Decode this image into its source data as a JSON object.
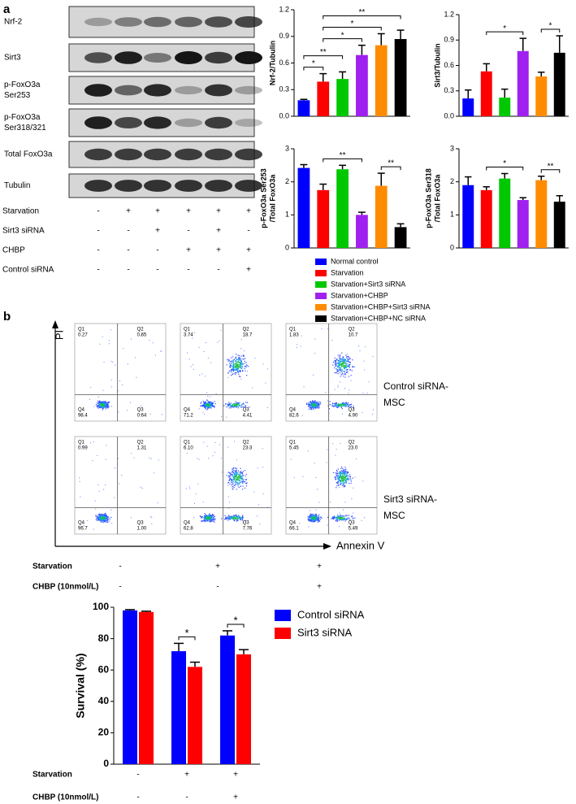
{
  "panels": [
    "a",
    "b"
  ],
  "blots": [
    [
      "Nrf-2"
    ],
    [
      "Sirt3"
    ],
    [
      "p-FoxO3a",
      "Ser253"
    ],
    [
      "p-FoxO3a",
      "Ser318/321"
    ],
    [
      "Total FoxO3a"
    ],
    [
      "Tubulin"
    ]
  ],
  "conditions_a": [
    {
      "label": "Starvation",
      "signs": [
        "-",
        "+",
        "+",
        "+",
        "+",
        "+"
      ]
    },
    {
      "label": "Sirt3 siRNA",
      "signs": [
        "-",
        "-",
        "+",
        "-",
        "+",
        "-"
      ]
    },
    {
      "label": "CHBP",
      "signs": [
        "-",
        "-",
        "-",
        "+",
        "+",
        "+"
      ]
    },
    {
      "label": "Control siRNA",
      "signs": [
        "-",
        "-",
        "-",
        "-",
        "-",
        "+"
      ]
    }
  ],
  "legend": [
    {
      "name": "Normal control",
      "color": "#0000ff"
    },
    {
      "name": "Starvation",
      "color": "#ff0000"
    },
    {
      "name": "Starvation+Sirt3 siRNA",
      "color": "#00c800"
    },
    {
      "name": "Starvation+CHBP",
      "color": "#a020f0"
    },
    {
      "name": "Starvation+CHBP+Sirt3 siRNA",
      "color": "#ff8c00"
    },
    {
      "name": "Starvation+CHBP+NC siRNA",
      "color": "#000000"
    }
  ],
  "flow": {
    "x_label": "Annexin V",
    "y_label": "PI",
    "quadrants": [
      "Q1",
      "Q2",
      "Q3",
      "Q4"
    ],
    "rows": [
      {
        "label": [
          "Control siRNA-",
          "MSC"
        ],
        "plots": [
          [
            "0.27",
            "0.65",
            "0.64",
            "98.4"
          ],
          [
            "3.74",
            "18.7",
            "4.41",
            "71.2"
          ],
          [
            "1.83",
            "10.7",
            "4.90",
            "82.6"
          ]
        ]
      },
      {
        "label": [
          "Sirt3 siRNA-",
          "MSC"
        ],
        "plots": [
          [
            "0.99",
            "1.31",
            "1.00",
            "96.7"
          ],
          [
            "6.10",
            "23.3",
            "7.76",
            "62.8"
          ],
          [
            "5.45",
            "23.0",
            "5.49",
            "66.1"
          ]
        ]
      }
    ]
  },
  "conditions_b": [
    {
      "label": "Starvation",
      "signs": [
        "-",
        "+",
        "+"
      ]
    },
    {
      "label": "CHBP (10nmol/L)",
      "signs": [
        "-",
        "-",
        "+"
      ]
    }
  ],
  "conditions_c": [
    {
      "label": "Starvation",
      "signs": [
        "-",
        "+",
        "+"
      ]
    },
    {
      "label": "CHBP (10nmol/L)",
      "signs": [
        "-",
        "-",
        "+"
      ]
    }
  ],
  "chart_data": [
    {
      "type": "bar",
      "ylabel": [
        "Nrf-2/Tubulin"
      ],
      "ylim": [
        0,
        1.2
      ],
      "yticks": [
        {
          "value": 0,
          "label": "0.0"
        },
        0.3,
        0.6,
        0.9,
        1.2
      ],
      "values": [
        0.18,
        0.39,
        0.42,
        0.69,
        0.8,
        0.87
      ],
      "errors": [
        0.01,
        0.09,
        0.08,
        0.11,
        0.13,
        0.1
      ],
      "annotations": [
        {
          "text": "*",
          "from": 0,
          "to": 1
        },
        {
          "text": "**",
          "from": 0,
          "to": 2
        },
        {
          "text": "*",
          "from": 1,
          "to": 3
        },
        {
          "text": "*",
          "from": 1,
          "to": 4
        },
        {
          "text": "**",
          "from": 1,
          "to": 5
        }
      ]
    },
    {
      "type": "bar",
      "ylabel": [
        "Sirt3/Tubulin"
      ],
      "ylim": [
        0,
        1.2
      ],
      "yticks": [
        {
          "value": 0,
          "label": "0.0"
        },
        0.3,
        0.6,
        0.9,
        1.2
      ],
      "values": [
        0.21,
        0.53,
        0.22,
        0.77,
        0.47,
        0.75
      ],
      "errors": [
        0.1,
        0.09,
        0.1,
        0.15,
        0.05,
        0.2
      ],
      "annotations": [
        {
          "text": "*",
          "from": 1,
          "to": 3
        },
        {
          "text": "*",
          "from": 4,
          "to": 5
        }
      ]
    },
    {
      "type": "bar",
      "ylabel": [
        "p-FoxO3a Ser253",
        "/Total FoxO3a"
      ],
      "ylim": [
        0,
        3
      ],
      "yticks": [
        0,
        1,
        2,
        3
      ],
      "values": [
        2.42,
        1.75,
        2.38,
        1.0,
        1.88,
        0.63
      ],
      "errors": [
        0.1,
        0.18,
        0.12,
        0.08,
        0.38,
        0.1
      ],
      "annotations": [
        {
          "text": "**",
          "from": 1,
          "to": 3
        },
        {
          "text": "**",
          "from": 4,
          "to": 5
        }
      ]
    },
    {
      "type": "bar",
      "ylabel": [
        "p-FoxO3a Ser318",
        "/Total FoxO3a"
      ],
      "ylim": [
        0,
        3
      ],
      "yticks": [
        0,
        1,
        2,
        3
      ],
      "values": [
        1.9,
        1.75,
        2.1,
        1.45,
        2.05,
        1.4
      ],
      "errors": [
        0.25,
        0.1,
        0.15,
        0.07,
        0.12,
        0.18
      ],
      "annotations": [
        {
          "text": "*",
          "from": 1,
          "to": 3
        },
        {
          "text": "**",
          "from": 4,
          "to": 5
        }
      ]
    },
    {
      "type": "bar",
      "ylabel": [
        "Survival (%)"
      ],
      "ylim": [
        0,
        100
      ],
      "yticks": [
        0,
        20,
        40,
        60,
        80,
        100
      ],
      "series": [
        {
          "name": "Control siRNA",
          "color": "#0000ff",
          "values": [
            98,
            72,
            82
          ],
          "errors": [
            0.5,
            5,
            3
          ]
        },
        {
          "name": "Sirt3 siRNA",
          "color": "#ff0000",
          "values": [
            97,
            62,
            70
          ],
          "errors": [
            0.5,
            3,
            3
          ]
        }
      ],
      "annotations": [
        {
          "text": "*",
          "group": 1
        },
        {
          "text": "*",
          "group": 2
        }
      ]
    }
  ]
}
